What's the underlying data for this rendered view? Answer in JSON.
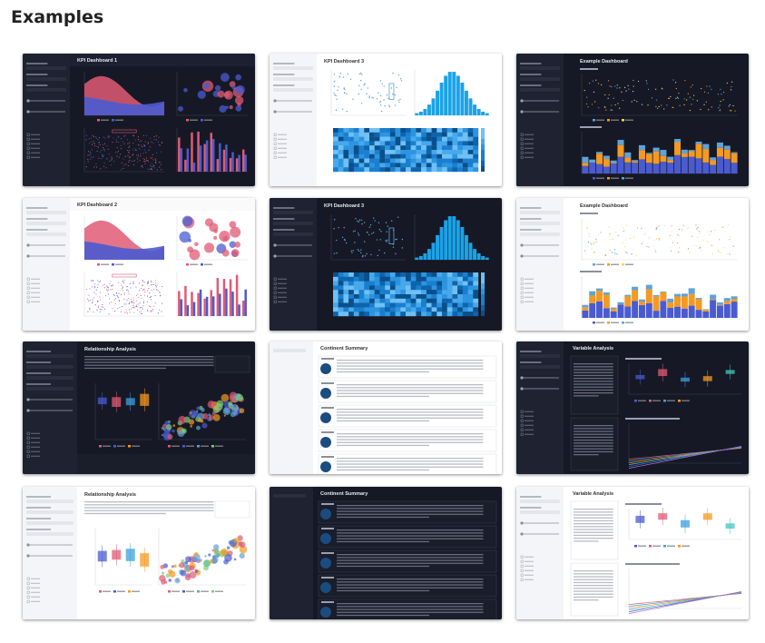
{
  "page": {
    "title": "Examples"
  },
  "examples": [
    {
      "title": "KPI Dashboard 1",
      "theme": "dark"
    },
    {
      "title": "KPI Dashboard 3",
      "theme": "light"
    },
    {
      "title": "Example Dashboard",
      "theme": "dark"
    },
    {
      "title": "KPI Dashboard 2",
      "theme": "light"
    },
    {
      "title": "KPI Dashboard 3",
      "theme": "dark"
    },
    {
      "title": "Example Dashboard",
      "theme": "light"
    },
    {
      "title": "Relationship Analysis",
      "theme": "dark"
    },
    {
      "title": "Continent Summary",
      "theme": "light"
    },
    {
      "title": "Variable Analysis",
      "theme": "dark"
    },
    {
      "title": "Relationship Analysis",
      "theme": "light"
    },
    {
      "title": "Continent Summary",
      "theme": "dark"
    },
    {
      "title": "Variable Analysis",
      "theme": "light"
    }
  ],
  "colors": {
    "accent_red": "#e05a74",
    "accent_blue": "#4a5bd0",
    "heat_blue": "#1aa3e8",
    "orange": "#f49a22"
  }
}
